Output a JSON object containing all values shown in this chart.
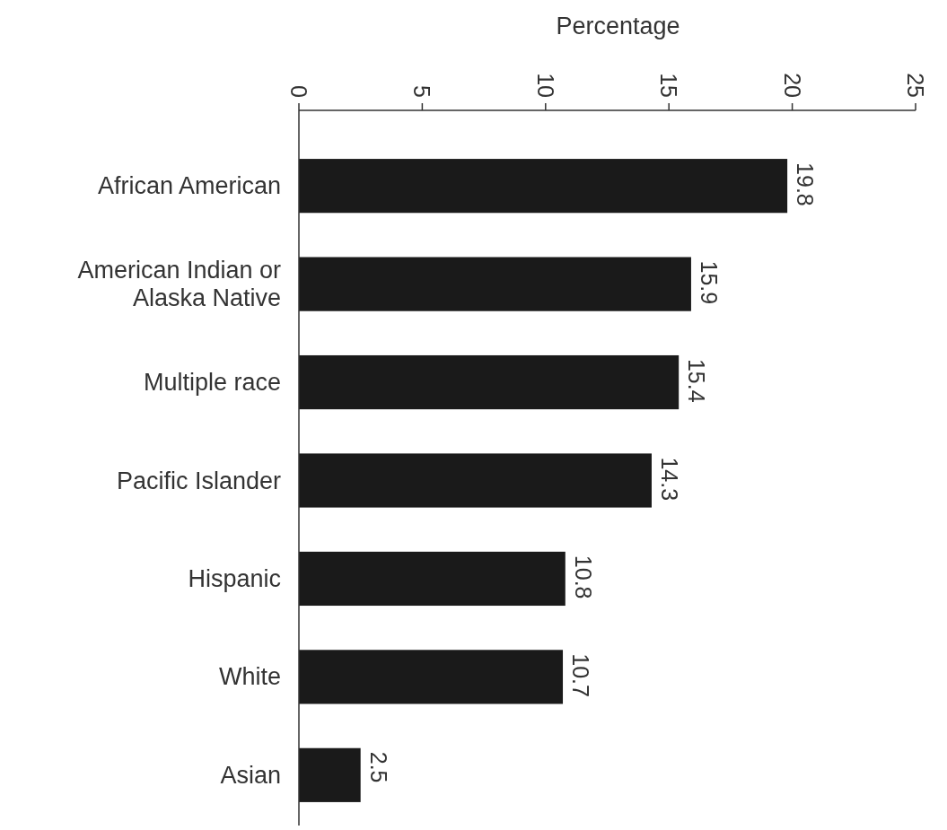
{
  "chart_data": {
    "type": "bar",
    "orientation": "horizontal",
    "xlabel": "Percentage",
    "categories": [
      "African American",
      "American Indian or Alaska Native",
      "Multiple race",
      "Pacific Islander",
      "Hispanic",
      "White",
      "Asian"
    ],
    "values": [
      19.8,
      15.9,
      15.4,
      14.3,
      10.8,
      10.7,
      2.5
    ],
    "color": "#1a1a1a",
    "xlim": [
      0,
      25
    ],
    "xticks": [
      0,
      5,
      10,
      15,
      20,
      25
    ],
    "data_labels": true
  }
}
